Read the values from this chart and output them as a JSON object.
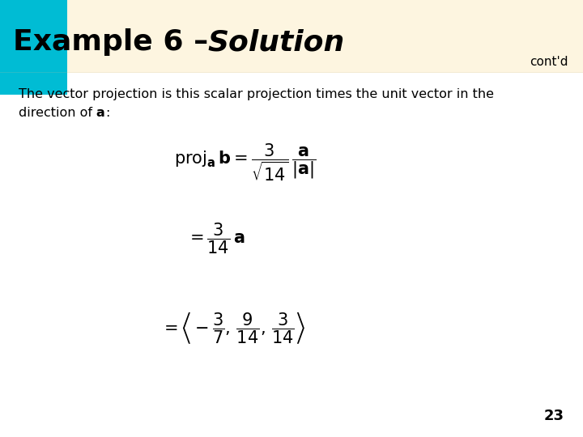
{
  "title": "Example 6 – ",
  "title_italic": "Solution",
  "contd": "cont'd",
  "bg_color": "#fdf5e0",
  "header_box_color": "#00bcd4",
  "header_text_color": "#000000",
  "body_bg": "#ffffff",
  "page_number": "23",
  "body_line1": "The vector projection is this scalar projection times the unit vector in the",
  "body_line2_pre": "direction of ",
  "body_line2_bold": "a",
  "body_line2_post": ":"
}
